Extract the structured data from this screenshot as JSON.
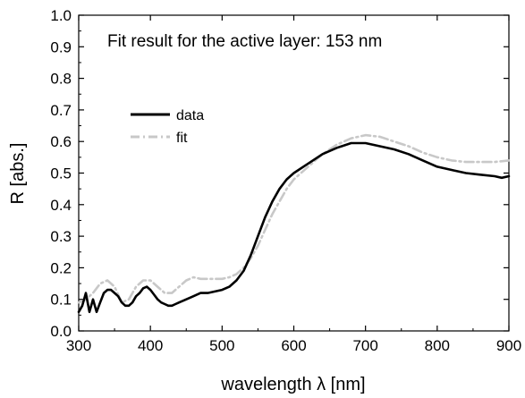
{
  "chart_data": {
    "type": "line",
    "title": "",
    "annotation": "Fit result for the active layer: 153 nm",
    "xlabel": "wavelength λ [nm]",
    "ylabel": "R [abs.]",
    "xlim": [
      300,
      900
    ],
    "ylim": [
      0.0,
      1.0
    ],
    "xticks": [
      300,
      400,
      500,
      600,
      700,
      800,
      900
    ],
    "yticks": [
      0.0,
      0.1,
      0.2,
      0.3,
      0.4,
      0.5,
      0.6,
      0.7,
      0.8,
      0.9,
      1.0
    ],
    "xtick_labels": [
      "300",
      "400",
      "500",
      "600",
      "700",
      "800",
      "900"
    ],
    "ytick_labels": [
      "0.0",
      "0.1",
      "0.2",
      "0.3",
      "0.4",
      "0.5",
      "0.6",
      "0.7",
      "0.8",
      "0.9",
      "1.0"
    ],
    "grid": false,
    "legend_position": "upper-left",
    "series": [
      {
        "name": "data",
        "color": "#000000",
        "style": "solid",
        "x": [
          300,
          305,
          310,
          315,
          320,
          325,
          330,
          335,
          340,
          345,
          350,
          355,
          360,
          365,
          370,
          375,
          380,
          385,
          390,
          395,
          400,
          405,
          410,
          415,
          420,
          425,
          430,
          435,
          440,
          450,
          460,
          470,
          480,
          490,
          500,
          510,
          520,
          530,
          540,
          545,
          550,
          555,
          560,
          570,
          580,
          590,
          600,
          620,
          640,
          660,
          680,
          700,
          720,
          740,
          760,
          780,
          800,
          820,
          840,
          860,
          880,
          890,
          900
        ],
        "y": [
          0.06,
          0.08,
          0.12,
          0.06,
          0.1,
          0.06,
          0.09,
          0.12,
          0.13,
          0.13,
          0.12,
          0.11,
          0.09,
          0.08,
          0.08,
          0.09,
          0.11,
          0.12,
          0.135,
          0.14,
          0.13,
          0.115,
          0.1,
          0.09,
          0.085,
          0.08,
          0.08,
          0.085,
          0.09,
          0.1,
          0.11,
          0.12,
          0.12,
          0.125,
          0.13,
          0.14,
          0.16,
          0.19,
          0.24,
          0.27,
          0.3,
          0.33,
          0.36,
          0.41,
          0.45,
          0.48,
          0.5,
          0.53,
          0.56,
          0.58,
          0.595,
          0.595,
          0.585,
          0.575,
          0.56,
          0.54,
          0.52,
          0.51,
          0.5,
          0.495,
          0.49,
          0.485,
          0.49
        ]
      },
      {
        "name": "fit",
        "color": "#c8c8c8",
        "style": "dashdot",
        "x": [
          300,
          310,
          320,
          330,
          340,
          350,
          360,
          370,
          380,
          390,
          400,
          410,
          420,
          430,
          440,
          450,
          460,
          470,
          480,
          490,
          500,
          510,
          520,
          530,
          540,
          550,
          560,
          570,
          580,
          590,
          600,
          620,
          640,
          660,
          680,
          700,
          720,
          740,
          760,
          780,
          800,
          820,
          840,
          860,
          880,
          900
        ],
        "y": [
          0.09,
          0.1,
          0.12,
          0.15,
          0.16,
          0.14,
          0.09,
          0.1,
          0.14,
          0.16,
          0.16,
          0.14,
          0.12,
          0.12,
          0.14,
          0.16,
          0.17,
          0.165,
          0.165,
          0.165,
          0.165,
          0.17,
          0.18,
          0.2,
          0.23,
          0.27,
          0.32,
          0.37,
          0.41,
          0.45,
          0.48,
          0.52,
          0.56,
          0.59,
          0.61,
          0.62,
          0.615,
          0.6,
          0.585,
          0.565,
          0.55,
          0.54,
          0.535,
          0.535,
          0.535,
          0.54
        ]
      }
    ]
  }
}
